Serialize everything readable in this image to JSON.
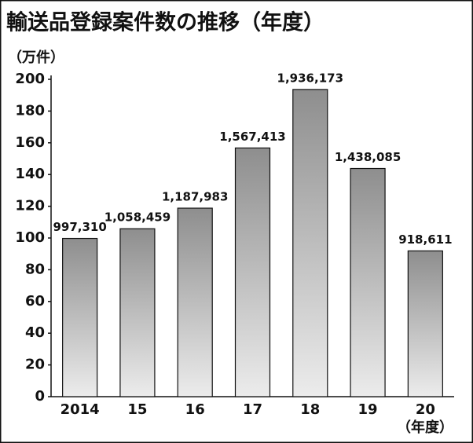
{
  "chart_data": {
    "type": "bar",
    "title": "輸送品登録案件数の推移（年度）",
    "y_axis_label": "（万件）",
    "x_axis_label": "（年度）",
    "categories": [
      "2014",
      "15",
      "16",
      "17",
      "18",
      "19",
      "20"
    ],
    "values": [
      99.731,
      105.8459,
      118.7983,
      156.7413,
      193.6173,
      143.8085,
      91.8611
    ],
    "value_labels": [
      "997,310",
      "1,058,459",
      "1,187,983",
      "1,567,413",
      "1,936,173",
      "1,438,085",
      "918,611"
    ],
    "ylim": [
      0,
      200
    ],
    "yticks": [
      0,
      20,
      40,
      60,
      80,
      100,
      120,
      140,
      160,
      180,
      200
    ],
    "grid": false
  }
}
